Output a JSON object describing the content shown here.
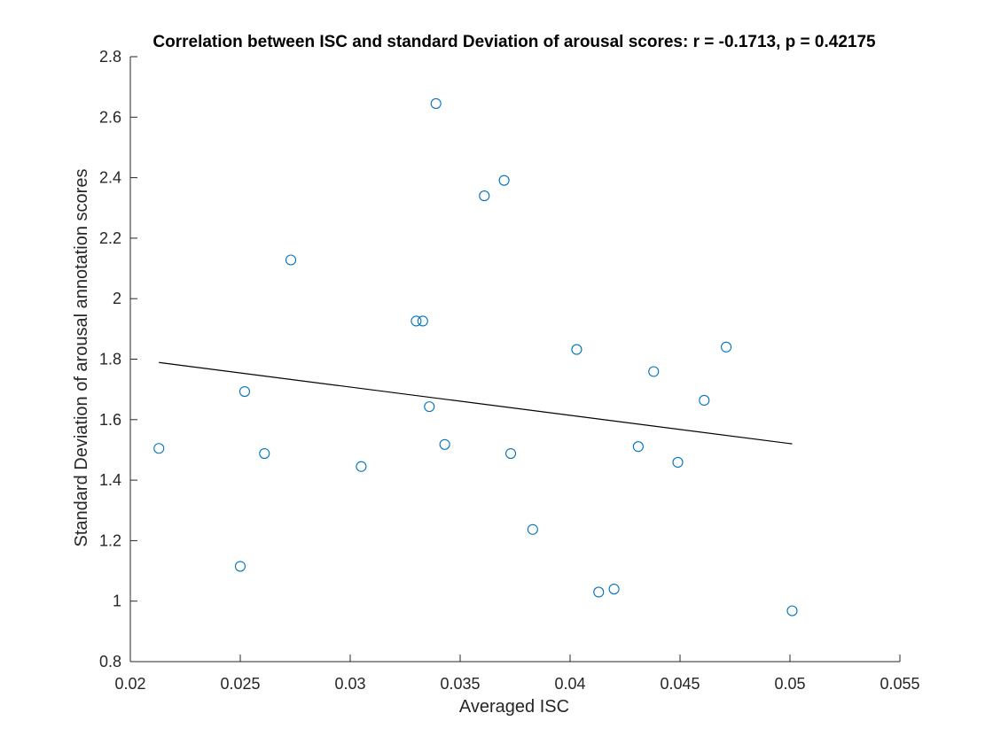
{
  "chart_data": {
    "type": "scatter",
    "title": "Correlation between ISC and standard Deviation of arousal scores: r = -0.1713, p = 0.42175",
    "xlabel": "Averaged ISC",
    "ylabel": "Standard Deviation of arousal annotation scores",
    "xlim": [
      0.02,
      0.055
    ],
    "ylim": [
      0.8,
      2.8
    ],
    "xticks": [
      0.02,
      0.025,
      0.03,
      0.035,
      0.04,
      0.045,
      0.05,
      0.055
    ],
    "xtick_labels": [
      "0.02",
      "0.025",
      "0.03",
      "0.035",
      "0.04",
      "0.045",
      "0.05",
      "0.055"
    ],
    "yticks": [
      0.8,
      1.0,
      1.2,
      1.4,
      1.6,
      1.8,
      2.0,
      2.2,
      2.4,
      2.6,
      2.8
    ],
    "ytick_labels": [
      "0.8",
      "1",
      "1.2",
      "1.4",
      "1.6",
      "1.8",
      "2",
      "2.2",
      "2.4",
      "2.6",
      "2.8"
    ],
    "grid": false,
    "series": [
      {
        "marker": "open-circle",
        "color": "#0072BD",
        "points": [
          {
            "x": 0.0213,
            "y": 1.505
          },
          {
            "x": 0.025,
            "y": 1.115
          },
          {
            "x": 0.0252,
            "y": 1.693
          },
          {
            "x": 0.0261,
            "y": 1.488
          },
          {
            "x": 0.0273,
            "y": 2.128
          },
          {
            "x": 0.0305,
            "y": 1.445
          },
          {
            "x": 0.033,
            "y": 1.926
          },
          {
            "x": 0.0333,
            "y": 1.926
          },
          {
            "x": 0.0336,
            "y": 1.643
          },
          {
            "x": 0.0339,
            "y": 2.645
          },
          {
            "x": 0.0343,
            "y": 1.518
          },
          {
            "x": 0.0361,
            "y": 2.34
          },
          {
            "x": 0.037,
            "y": 2.391
          },
          {
            "x": 0.0373,
            "y": 1.488
          },
          {
            "x": 0.0383,
            "y": 1.237
          },
          {
            "x": 0.0403,
            "y": 1.832
          },
          {
            "x": 0.0413,
            "y": 1.03
          },
          {
            "x": 0.042,
            "y": 1.04
          },
          {
            "x": 0.0431,
            "y": 1.511
          },
          {
            "x": 0.0438,
            "y": 1.759
          },
          {
            "x": 0.0449,
            "y": 1.459
          },
          {
            "x": 0.0461,
            "y": 1.664
          },
          {
            "x": 0.0471,
            "y": 1.84
          },
          {
            "x": 0.0501,
            "y": 0.968
          }
        ]
      },
      {
        "type": "line",
        "color": "#000000",
        "points": [
          {
            "x": 0.0213,
            "y": 1.789
          },
          {
            "x": 0.0501,
            "y": 1.52
          }
        ]
      }
    ]
  }
}
